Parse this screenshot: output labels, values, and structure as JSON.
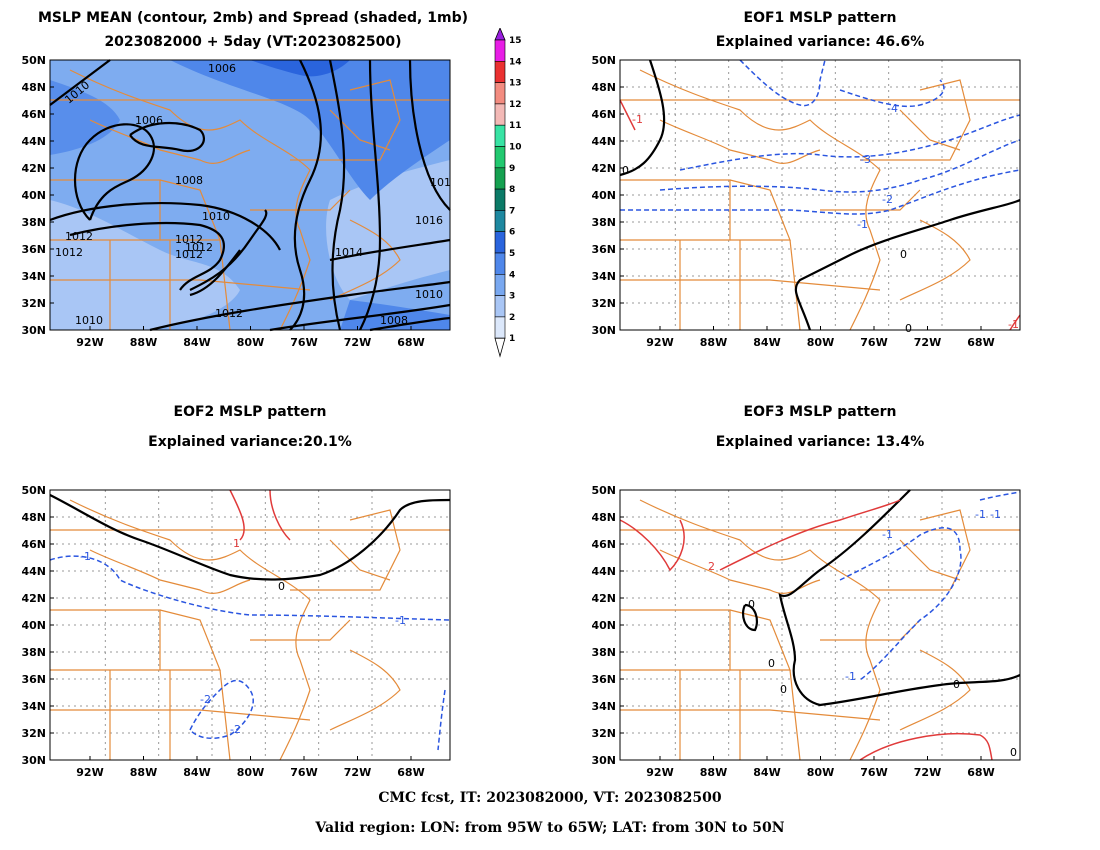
{
  "panels": [
    {
      "id": "mean",
      "title1": "MSLP MEAN (contour, 2mb) and Spread (shaded, 1mb)",
      "title2": "2023082000 + 5day (VT:2023082500)",
      "contour_labels": [
        "1010",
        "1006",
        "1006",
        "1008",
        "1010",
        "1012",
        "1012",
        "1012",
        "1012",
        "1012",
        "1014",
        "1016",
        "101",
        "1010",
        "1012",
        "1008",
        "1010"
      ]
    },
    {
      "id": "eof1",
      "title1": "EOF1 MSLP pattern",
      "title2": "Explained variance: 46.6%",
      "contour_labels": [
        "0",
        "-4",
        "-3",
        "-2",
        "-1",
        "0",
        "0",
        "-1",
        "-1"
      ]
    },
    {
      "id": "eof2",
      "title1": "EOF2 MSLP pattern",
      "title2": "Explained variance:20.1%",
      "contour_labels": [
        "-1",
        "1",
        "0",
        "-1",
        "-2",
        "-2"
      ]
    },
    {
      "id": "eof3",
      "title1": "EOF3 MSLP pattern",
      "title2": "Explained variance: 13.4%",
      "contour_labels": [
        "-1",
        "-1",
        "2",
        "0",
        "0",
        "0",
        "-1",
        "0",
        "-1",
        "0"
      ]
    }
  ],
  "lat_labels": [
    "30N",
    "32N",
    "34N",
    "36N",
    "38N",
    "40N",
    "42N",
    "44N",
    "46N",
    "48N",
    "50N"
  ],
  "lon_labels": [
    "92W",
    "88W",
    "84W",
    "80W",
    "76W",
    "72W",
    "68W"
  ],
  "colorbar": {
    "labels": [
      "1",
      "2",
      "3",
      "4",
      "5",
      "6",
      "7",
      "8",
      "9",
      "10",
      "11",
      "12",
      "13",
      "14",
      "15"
    ],
    "colors": [
      "#dce8fb",
      "#a9c6f5",
      "#79a8f0",
      "#4f87ea",
      "#2a64dd",
      "#1e88a0",
      "#0b7a67",
      "#15a050",
      "#22c970",
      "#38e3a4",
      "#f3b9b6",
      "#f38c80",
      "#ea3131",
      "#e81ee6",
      "#9a1fe0"
    ]
  },
  "footer": {
    "line1": "CMC fcst, IT: 2023082000, VT: 2023082500",
    "line2": "Valid region: LON: from 95W to 65W; LAT: from 30N to 50N"
  }
}
